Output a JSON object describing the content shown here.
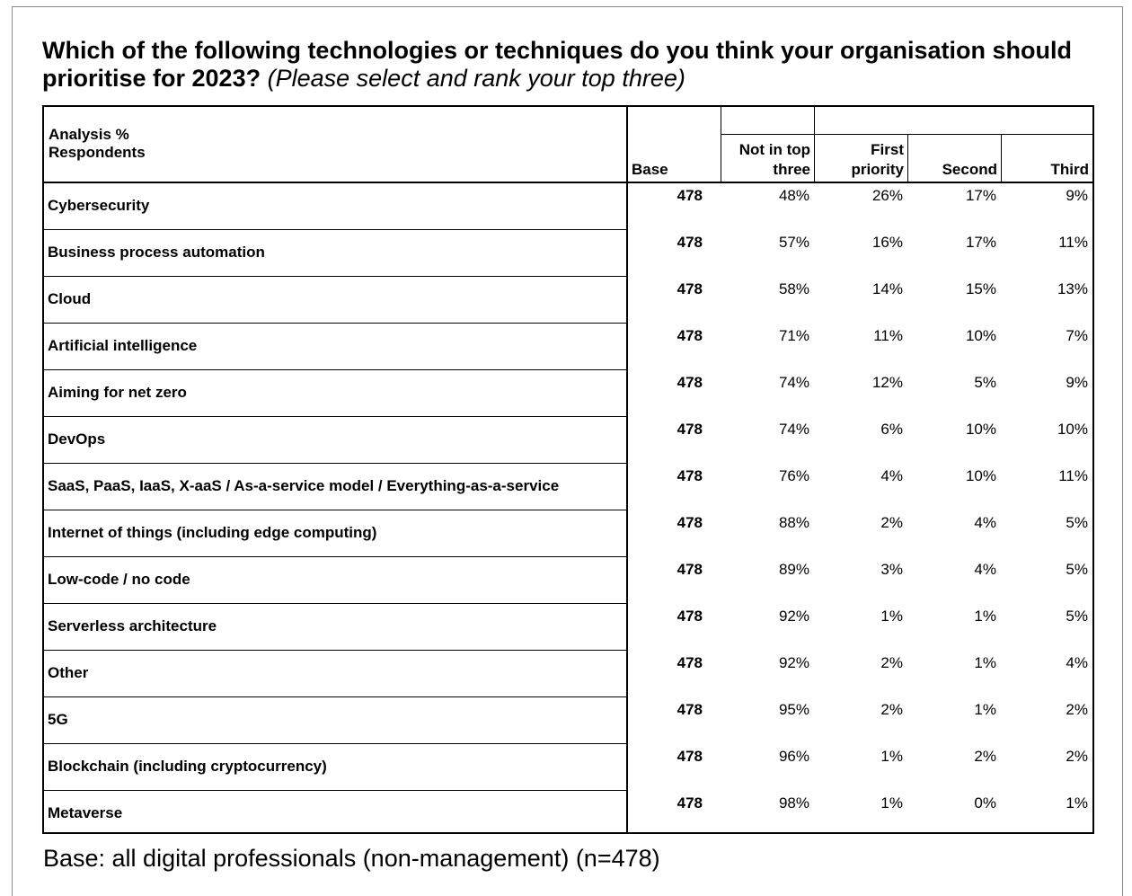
{
  "title": {
    "main": "Which of the following technologies or techniques do you think your organisation should prioritise for 2023?",
    "sub": "(Please select and rank your top three)"
  },
  "table": {
    "corner_label_line1": "Analysis %",
    "corner_label_line2": "Respondents",
    "columns": {
      "base": "Base",
      "not_top_line1": "Not in top",
      "not_top_line2": "three",
      "first_line1": "First",
      "first_line2": "priority",
      "second": "Second",
      "third": "Third"
    },
    "rows": [
      {
        "label": "Cybersecurity",
        "base": "478",
        "not_top": "48%",
        "first": "26%",
        "second": "17%",
        "third": "9%"
      },
      {
        "label": "Business process automation",
        "base": "478",
        "not_top": "57%",
        "first": "16%",
        "second": "17%",
        "third": "11%"
      },
      {
        "label": "Cloud",
        "base": "478",
        "not_top": "58%",
        "first": "14%",
        "second": "15%",
        "third": "13%"
      },
      {
        "label": "Artificial intelligence",
        "base": "478",
        "not_top": "71%",
        "first": "11%",
        "second": "10%",
        "third": "7%"
      },
      {
        "label": "Aiming for net zero",
        "base": "478",
        "not_top": "74%",
        "first": "12%",
        "second": "5%",
        "third": "9%"
      },
      {
        "label": "DevOps",
        "base": "478",
        "not_top": "74%",
        "first": "6%",
        "second": "10%",
        "third": "10%"
      },
      {
        "label": "SaaS, PaaS, IaaS, X-aaS / As-a-service model / Everything-as-a-service",
        "base": "478",
        "not_top": "76%",
        "first": "4%",
        "second": "10%",
        "third": "11%"
      },
      {
        "label": "Internet of things (including edge computing)",
        "base": "478",
        "not_top": "88%",
        "first": "2%",
        "second": "4%",
        "third": "5%"
      },
      {
        "label": "Low-code / no code",
        "base": "478",
        "not_top": "89%",
        "first": "3%",
        "second": "4%",
        "third": "5%"
      },
      {
        "label": "Serverless architecture",
        "base": "478",
        "not_top": "92%",
        "first": "1%",
        "second": "1%",
        "third": "5%"
      },
      {
        "label": "Other",
        "base": "478",
        "not_top": "92%",
        "first": "2%",
        "second": "1%",
        "third": "4%"
      },
      {
        "label": "5G",
        "base": "478",
        "not_top": "95%",
        "first": "2%",
        "second": "1%",
        "third": "2%"
      },
      {
        "label": "Blockchain (including cryptocurrency)",
        "base": "478",
        "not_top": "96%",
        "first": "1%",
        "second": "2%",
        "third": "2%"
      },
      {
        "label": "Metaverse",
        "base": "478",
        "not_top": "98%",
        "first": "1%",
        "second": "0%",
        "third": "1%"
      }
    ]
  },
  "footer": "Base: all digital professionals (non-management) (n=478)"
}
